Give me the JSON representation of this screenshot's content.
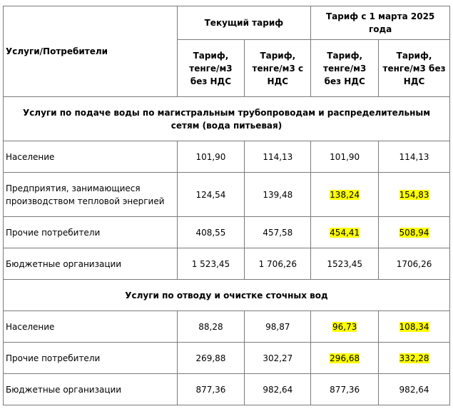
{
  "header": {
    "services_consumers": "Услуги/Потребители",
    "current_tariff": "Текущий тариф",
    "new_tariff": "Тариф с 1 марта 2025 года",
    "col_without_vat": "Тариф, тенге/м3 без НДС",
    "col_with_vat": "Тариф, тенге/м3 с НДС",
    "col_new_1": "Тариф, тенге/м3 без НДС",
    "col_new_2": "Тариф, тенге/м3 без НДС"
  },
  "highlight_color": "#ffff00",
  "sections": [
    {
      "title": "Услуги по подаче воды по магистральным трубопроводам и распределительным сетям (вода питьевая)",
      "rows": [
        {
          "name": "Население",
          "v": [
            "101,90",
            "114,13",
            "101,90",
            "114,13"
          ],
          "highlighted": [
            false,
            false
          ]
        },
        {
          "name": "Предприятия, занимающиеся производством тепловой энергией",
          "v": [
            "124,54",
            "139,48",
            "138,24",
            "154,83"
          ],
          "highlighted": [
            true,
            true
          ]
        },
        {
          "name": "Прочие потребители",
          "v": [
            "408,55",
            "457,58",
            "454,41",
            "508,94"
          ],
          "highlighted": [
            true,
            true
          ]
        },
        {
          "name": "Бюджетные организации",
          "v": [
            "1 523,45",
            "1 706,26",
            "1523,45",
            "1706,26"
          ],
          "highlighted": [
            false,
            false
          ]
        }
      ]
    },
    {
      "title": "Услуги по отводу и очистке сточных вод",
      "rows": [
        {
          "name": "Население",
          "v": [
            "88,28",
            "98,87",
            "96,73",
            "108,34"
          ],
          "highlighted": [
            true,
            true
          ]
        },
        {
          "name": "Прочие потребители",
          "v": [
            "269,88",
            "302,27",
            "296,68",
            "332,28"
          ],
          "highlighted": [
            true,
            true
          ]
        },
        {
          "name": "Бюджетные организации",
          "v": [
            "877,36",
            "982,64",
            "877,36",
            "982,64"
          ],
          "highlighted": [
            false,
            false
          ]
        }
      ]
    }
  ]
}
